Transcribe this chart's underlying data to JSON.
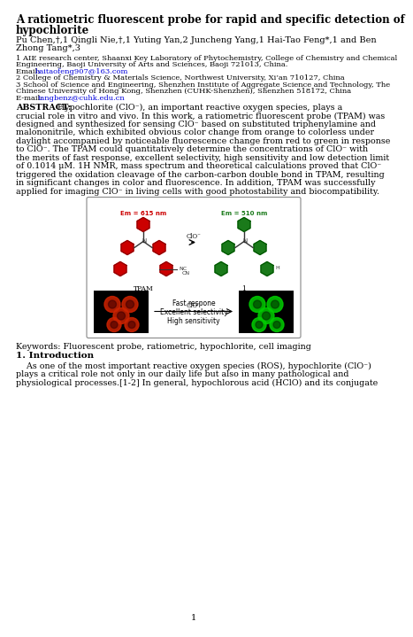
{
  "title_line1": "A ratiometric fluorescent probe for rapid and specific detection of",
  "title_line2": "hypochlorite",
  "auth_line1": "Pu Chen,†,1 Qingli Nie,†,1 Yuting Yan,2 Juncheng Yang,1 Hai-Tao Feng*,1 and Ben",
  "auth_line2": "Zhong Tang*,3",
  "aff1_line1": "1 AIE research center, Shaanxi Key Laboratory of Phytochemistry, College of Chemistry and Chemical",
  "aff1_line2": "Engineering, Baoji University of Arts and Sciences, Baoji 721013, China.",
  "email1_pre": "Email: ",
  "email1_link": "haitaofeng907@163.com",
  "aff2": "2 College of Chemistry & Materials Science, Northwest University, Xi’an 710127, China",
  "aff3_line1": "3 School of Science and Engineering, Shenzhen Institute of Aggregate Science and Technology, The",
  "aff3_line2": "Chinese University of Hong Kong, Shenzhen (CUHK-Shenzhen), Shenzhen 518172, China",
  "email2_pre": "E-mail: ",
  "email2_link": "tangbenz@cuhk.edu.cn",
  "abs_label": "ABSTRACT:",
  "abs_body": "Hypochlorite (ClO⁻), an important reactive oxygen species, plays a crucial role in vitro and vivo. In this work, a ratiometric fluorescent probe (TPAM) was designed and synthesized for sensing ClO⁻ based on substituted triphenylamine and malononitrile, which exhibited obvious color change from orange to colorless under daylight accompanied by noticeable fluorescence change from red to green in response to ClO⁻. The TPAM could quantitatively determine the concentrations of ClO⁻ with the merits of fast response, excellent selectivity, high sensitivity and low detection limit of 0.1014 μM. 1H NMR, mass spectrum and theoretical calculations proved that ClO⁻ triggered the oxidation cleavage of the carbon-carbon double bond in TPAM, resulting in significant changes in color and fluorescence. In addition, TPAM was successfully applied for imaging ClO⁻ in living cells with good photostability and biocompatibility.",
  "keywords": "Keywords: Fluorescent probe, ratiometric, hypochlorite, cell imaging",
  "section1": "1. Introduction",
  "intro_indent": "    As one of the most important reactive oxygen species (ROS), hypochlorite (ClO⁻)",
  "intro_line2": "plays a critical role not only in our daily life but also in many pathological and",
  "intro_line3": "physiological processes.[1-2] In general, hypochlorous acid (HClO) and its conjugate",
  "page_num": "1",
  "red_hex": "#cc0000",
  "green_hex": "#1a7a1a",
  "link_color": "#0000dd",
  "bg": "#ffffff"
}
